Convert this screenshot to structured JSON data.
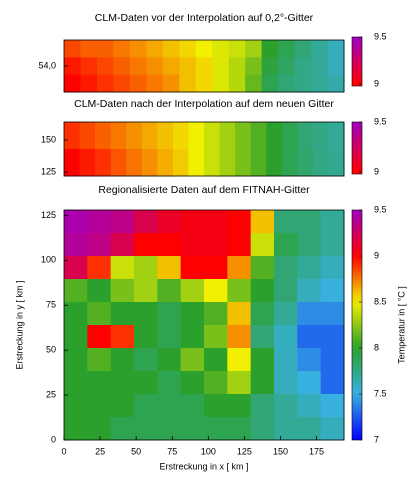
{
  "chart_data": [
    {
      "type": "heatmap",
      "title": "CLM-Daten vor der Interpolation auf 0,2°-Gitter",
      "ylim": [
        53.72,
        54.28
      ],
      "yticks": [
        {
          "value": 54,
          "label": "54,0"
        }
      ],
      "zlim": [
        8.98,
        9.5
      ],
      "zticks": [
        9,
        9.5
      ],
      "z": [
        [
          8.85,
          8.8,
          8.8,
          8.75,
          8.7,
          8.65,
          8.6,
          8.55,
          8.5,
          8.45,
          8.4,
          8.3,
          8.0,
          7.9,
          7.8,
          7.7,
          7.6
        ],
        [
          8.95,
          8.9,
          8.85,
          8.8,
          8.75,
          8.7,
          8.65,
          8.6,
          8.55,
          8.45,
          8.35,
          8.2,
          7.95,
          7.85,
          7.75,
          7.7,
          7.6
        ],
        [
          9.0,
          8.95,
          8.9,
          8.85,
          8.8,
          8.75,
          8.7,
          8.6,
          8.55,
          8.45,
          8.35,
          8.15,
          7.9,
          7.8,
          7.75,
          7.7,
          7.65
        ]
      ]
    },
    {
      "type": "heatmap",
      "title": "CLM-Daten nach der Interpolation auf dem neuen Gitter",
      "ylim": [
        122,
        164
      ],
      "yticks": [
        150,
        125
      ],
      "zlim": [
        8.98,
        9.5
      ],
      "zticks": [
        9,
        9.5
      ],
      "z": [
        [
          8.9,
          8.85,
          8.8,
          8.75,
          8.7,
          8.65,
          8.6,
          8.55,
          8.5,
          8.4,
          8.3,
          8.2,
          8.1,
          8.0,
          7.9,
          7.8,
          7.75,
          7.7
        ],
        [
          9.0,
          8.95,
          8.9,
          8.82,
          8.76,
          8.7,
          8.64,
          8.58,
          8.5,
          8.4,
          8.3,
          8.2,
          8.1,
          8.0,
          7.9,
          7.82,
          7.76,
          7.72
        ]
      ]
    },
    {
      "type": "heatmap",
      "title": "Regionalisierte Daten auf dem FITNAH-Gitter",
      "xlabel": "Erstreckung in x [ km ]",
      "ylabel": "Erstreckung in y [ km ]",
      "zlabel": "Temperatur in [ °C ]",
      "xlim": [
        0,
        194
      ],
      "xticks": [
        0,
        25,
        50,
        75,
        100,
        125,
        150,
        175
      ],
      "ylim": [
        0,
        128
      ],
      "yticks": [
        0,
        25,
        50,
        75,
        100,
        125
      ],
      "zlim": [
        7,
        9.5
      ],
      "zticks": [
        7,
        7.5,
        8,
        8.5,
        9,
        9.5
      ],
      "colormap": [
        "#0000ff",
        "#38b0e0",
        "#2ca02c",
        "#f0f000",
        "#ff0000",
        "#a000c0"
      ],
      "z": [
        [
          9.45,
          9.4,
          9.35,
          9.2,
          9.1,
          9.05,
          9.05,
          9.0,
          8.6,
          7.8,
          7.8,
          7.7
        ],
        [
          9.4,
          9.35,
          9.2,
          9.0,
          9.0,
          9.05,
          9.05,
          9.0,
          8.4,
          7.9,
          7.8,
          7.7
        ],
        [
          9.2,
          8.9,
          8.4,
          8.3,
          8.6,
          9.0,
          9.0,
          8.7,
          8.1,
          7.8,
          7.7,
          7.6
        ],
        [
          8.1,
          8.0,
          8.2,
          8.3,
          8.1,
          8.3,
          8.5,
          8.2,
          8.0,
          7.8,
          7.6,
          7.5
        ],
        [
          8.0,
          8.1,
          8.0,
          8.0,
          7.9,
          8.0,
          8.1,
          8.6,
          7.9,
          7.7,
          7.4,
          7.4
        ],
        [
          8.0,
          9.0,
          8.9,
          8.0,
          7.9,
          8.0,
          8.2,
          8.7,
          7.8,
          7.6,
          7.3,
          7.3
        ],
        [
          8.0,
          8.1,
          8.0,
          7.9,
          8.0,
          8.2,
          8.0,
          8.5,
          8.0,
          7.6,
          7.4,
          7.3
        ],
        [
          8.0,
          8.0,
          8.0,
          8.0,
          7.9,
          8.0,
          8.1,
          8.3,
          8.0,
          7.6,
          7.5,
          7.3
        ],
        [
          8.0,
          8.0,
          8.0,
          7.9,
          7.9,
          7.9,
          8.0,
          8.0,
          7.8,
          7.7,
          7.6,
          7.5
        ],
        [
          8.0,
          8.0,
          7.9,
          7.9,
          7.9,
          7.9,
          7.9,
          7.9,
          7.8,
          7.7,
          7.7,
          7.6
        ]
      ]
    }
  ]
}
